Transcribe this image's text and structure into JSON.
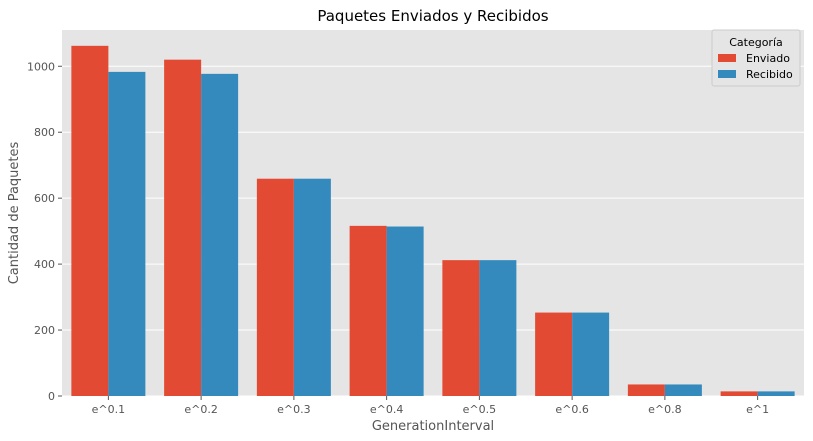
{
  "chart_data": {
    "type": "bar",
    "title": "Paquetes Enviados y Recibidos",
    "xlabel": "GenerationInterval",
    "ylabel": "Cantidad de Paquetes",
    "categories": [
      "e^0.1",
      "e^0.2",
      "e^0.3",
      "e^0.4",
      "e^0.5",
      "e^0.6",
      "e^0.8",
      "e^1"
    ],
    "series": [
      {
        "name": "Enviado",
        "color": "#E24A33",
        "values": [
          1062,
          1020,
          659,
          516,
          412,
          253,
          35,
          14
        ]
      },
      {
        "name": "Recibido",
        "color": "#348ABD",
        "values": [
          983,
          977,
          659,
          514,
          412,
          253,
          35,
          14
        ]
      }
    ],
    "ylim": [
      0,
      1110
    ],
    "yticks": [
      0,
      200,
      400,
      600,
      800,
      1000
    ],
    "grid": true,
    "legend": {
      "title": "Categoría",
      "position": "top-right"
    },
    "background": "#E5E5E5"
  }
}
